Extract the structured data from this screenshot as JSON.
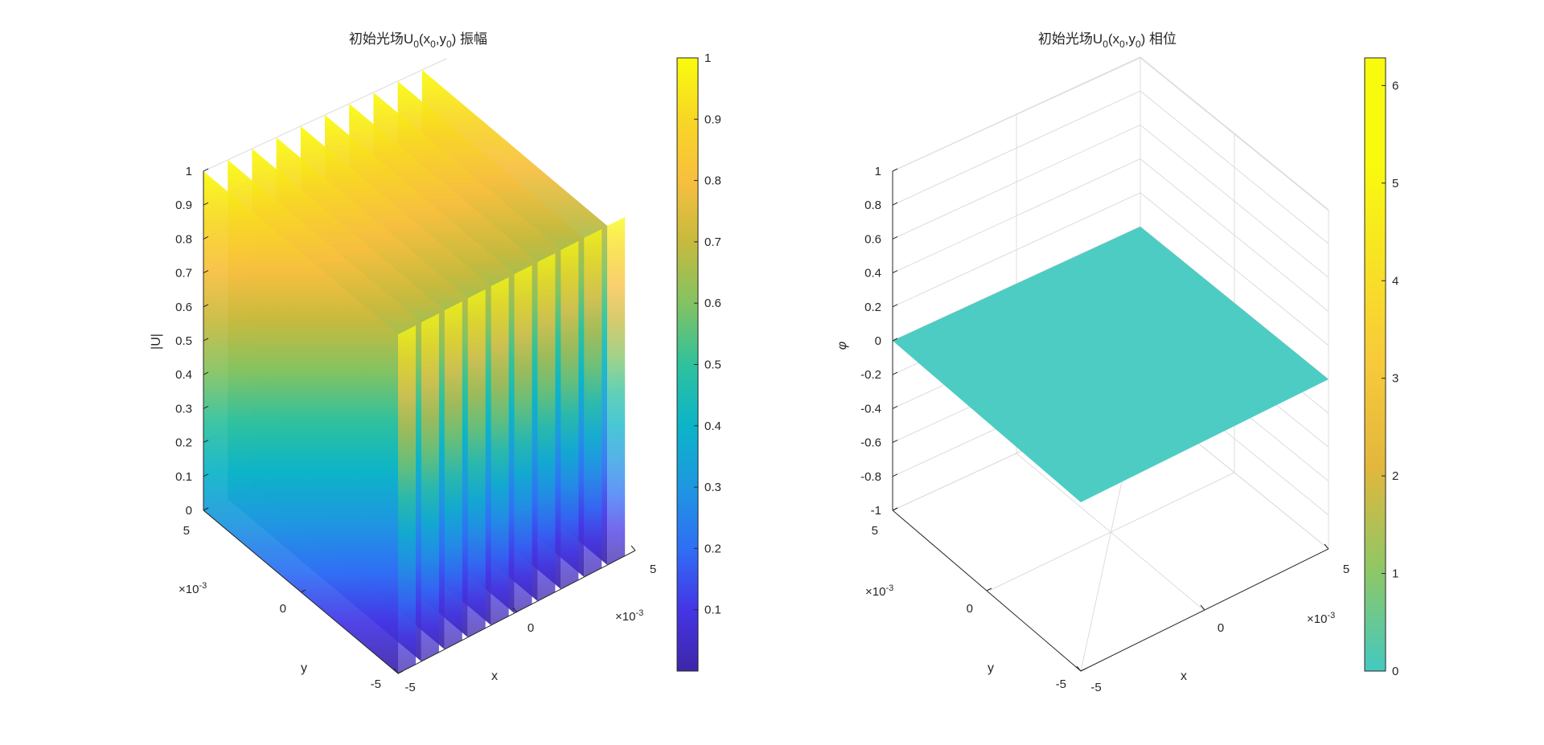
{
  "chart_data": [
    {
      "type": "surface",
      "title": "初始光场U0(x0,y0) 振幅",
      "title_parts": {
        "prefix": "初始光场U",
        "sub0": "0",
        "open": "(x",
        "sub1": "0",
        "comma": ",y",
        "sub2": "0",
        "close": ") 振幅"
      },
      "xlabel": "x",
      "ylabel": "y",
      "zlabel": "|U|",
      "x_ticks": [
        "-5",
        "0",
        "5"
      ],
      "y_ticks": [
        "-5",
        "0",
        "5"
      ],
      "x_exponent": "×10-3",
      "y_exponent": "×10-3",
      "exponent_parts": {
        "base": "×10",
        "power": "-3"
      },
      "xlim": [
        -0.005,
        0.005
      ],
      "ylim": [
        -0.005,
        0.005
      ],
      "zlim": [
        0,
        1
      ],
      "z_ticks": [
        "0",
        "0.1",
        "0.2",
        "0.3",
        "0.4",
        "0.5",
        "0.6",
        "0.7",
        "0.8",
        "0.9",
        "1"
      ],
      "stripe_count": 10,
      "surface_description": "Fringe pattern: amplitude varies along x (10 bands), constant along y",
      "colorbar": {
        "colormap": "parula",
        "limits": [
          0,
          1
        ],
        "ticks": [
          "0.1",
          "0.2",
          "0.3",
          "0.4",
          "0.5",
          "0.6",
          "0.7",
          "0.8",
          "0.9",
          "1"
        ]
      }
    },
    {
      "type": "surface",
      "title": "初始光场U0(x0,y0) 相位",
      "title_parts": {
        "prefix": "初始光场U",
        "sub0": "0",
        "open": "(x",
        "sub1": "0",
        "comma": ",y",
        "sub2": "0",
        "close": ") 相位"
      },
      "xlabel": "x",
      "ylabel": "y",
      "zlabel": "φ",
      "x_ticks": [
        "-5",
        "0",
        "5"
      ],
      "y_ticks": [
        "-5",
        "0",
        "5"
      ],
      "x_exponent": "×10-3",
      "y_exponent": "×10-3",
      "xlim": [
        -0.005,
        0.005
      ],
      "ylim": [
        -0.005,
        0.005
      ],
      "zlim": [
        -1,
        1
      ],
      "z_ticks": [
        "-1",
        "-0.8",
        "-0.6",
        "-0.4",
        "-0.2",
        "0",
        "0.2",
        "0.4",
        "0.6",
        "0.8",
        "1"
      ],
      "surface_value": 0,
      "surface_color": "#43c9c0",
      "colorbar": {
        "colormap": "parula",
        "limits": [
          0,
          6.2832
        ],
        "ticks": [
          "0",
          "1",
          "2",
          "3",
          "4",
          "5",
          "6"
        ]
      }
    }
  ],
  "colors": {
    "parula": [
      "#3e26a8",
      "#4435e5",
      "#2f6ff5",
      "#1e97e0",
      "#0cb4c8",
      "#2fc19d",
      "#83c361",
      "#c6ba3e",
      "#f7bf3f",
      "#f8d724",
      "#f9fb0e"
    ],
    "phase_colorbar": [
      "#43c9c0",
      "#8fc765",
      "#e2b73c",
      "#f7c93b",
      "#f8e225",
      "#f9fb0e",
      "#f9fb0e"
    ],
    "axis": "#262626",
    "grid": "#dcdcdc"
  }
}
